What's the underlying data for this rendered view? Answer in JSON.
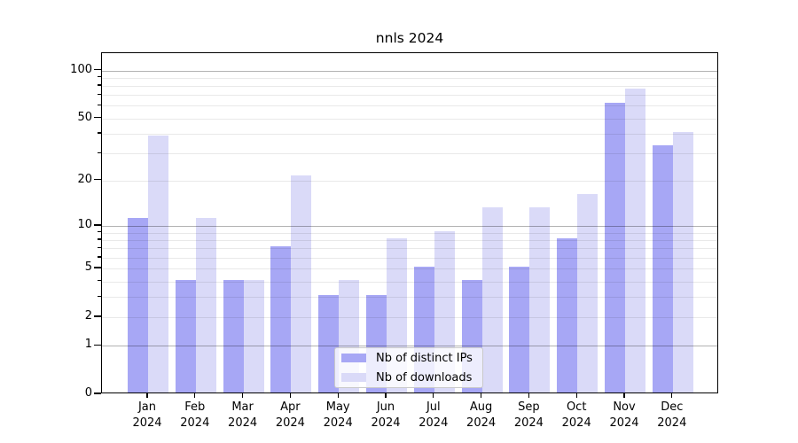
{
  "chart_data": {
    "type": "bar",
    "title": "nnls 2024",
    "year": "2024",
    "months": [
      "Jan",
      "Feb",
      "Mar",
      "Apr",
      "May",
      "Jun",
      "Jul",
      "Aug",
      "Sep",
      "Oct",
      "Nov",
      "Dec"
    ],
    "series": [
      {
        "name": "Nb of distinct IPs",
        "color": "#a7a7f5",
        "values": [
          11,
          4,
          4,
          7,
          3,
          3,
          5,
          4,
          5,
          8,
          61,
          33
        ]
      },
      {
        "name": "Nb of downloads",
        "color": "#dadaf8",
        "values": [
          38,
          11,
          4,
          21,
          4,
          8,
          9,
          13,
          13,
          16,
          75,
          40
        ]
      }
    ],
    "y_axis": {
      "scale": "log10(1+x)",
      "ylim": [
        0,
        127
      ],
      "tick_values": [
        0,
        1,
        2,
        5,
        10,
        20,
        50,
        100
      ],
      "tick_labels": [
        "0",
        "1",
        "2",
        "5",
        "10",
        "20",
        "50",
        "100"
      ],
      "minor_tick_values": [
        3,
        4,
        6,
        7,
        8,
        9,
        30,
        40,
        60,
        70,
        80,
        90
      ],
      "gridlines": {
        "minor": [
          2,
          3,
          4,
          5,
          6,
          7,
          8,
          9,
          20,
          30,
          40,
          50,
          60,
          70,
          80,
          90
        ],
        "major": [
          1,
          10,
          100
        ]
      }
    },
    "legend": {
      "entries": [
        "Nb of distinct IPs",
        "Nb of downloads"
      ],
      "position": "inside-bottom-center"
    },
    "grid": "horizontal, drawn above bars"
  },
  "colors": {
    "bar_distinct_ips": "#a7a7f5",
    "bar_downloads": "#dadaf8",
    "major_grid": "#b5b5b5",
    "minor_grid": "#eaeaea",
    "axis": "#000000",
    "background": "#ffffff"
  }
}
